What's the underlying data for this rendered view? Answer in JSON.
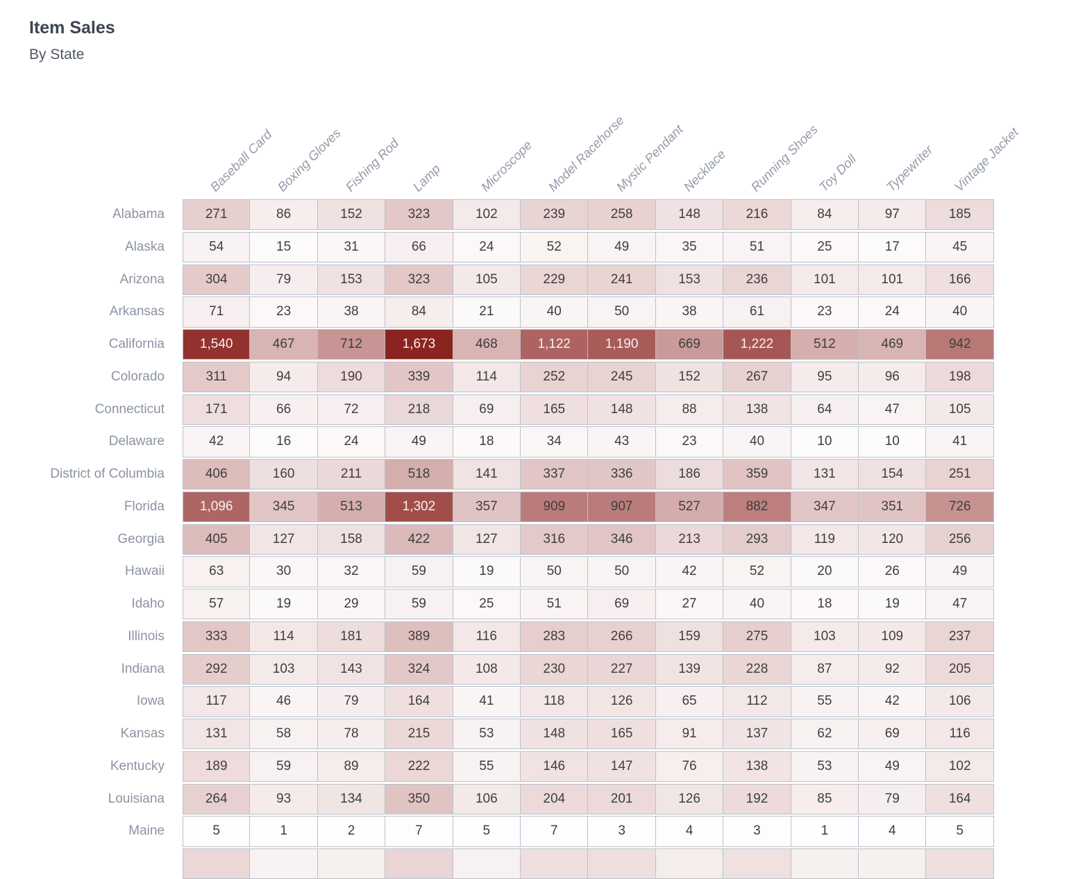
{
  "title": "Item Sales",
  "subtitle": "By State",
  "chart_data": {
    "type": "heatmap",
    "title": "Item Sales",
    "subtitle": "By State",
    "columns": [
      "Baseball Card",
      "Boxing Gloves",
      "Fishing Rod",
      "Lamp",
      "Microscope",
      "Model Racehorse",
      "Mystic Pendant",
      "Necklace",
      "Running Shoes",
      "Toy Doll",
      "Typewriter",
      "Vintage Jacket"
    ],
    "rows": [
      "Alabama",
      "Alaska",
      "Arizona",
      "Arkansas",
      "California",
      "Colorado",
      "Connecticut",
      "Delaware",
      "District of Columbia",
      "Florida",
      "Georgia",
      "Hawaii",
      "Idaho",
      "Illinois",
      "Indiana",
      "Iowa",
      "Kansas",
      "Kentucky",
      "Louisiana",
      "Maine"
    ],
    "values": [
      [
        271,
        86,
        152,
        323,
        102,
        239,
        258,
        148,
        216,
        84,
        97,
        185
      ],
      [
        54,
        15,
        31,
        66,
        24,
        52,
        49,
        35,
        51,
        25,
        17,
        45
      ],
      [
        304,
        79,
        153,
        323,
        105,
        229,
        241,
        153,
        236,
        101,
        101,
        166
      ],
      [
        71,
        23,
        38,
        84,
        21,
        40,
        50,
        38,
        61,
        23,
        24,
        40
      ],
      [
        1540,
        467,
        712,
        1673,
        468,
        1122,
        1190,
        669,
        1222,
        512,
        469,
        942
      ],
      [
        311,
        94,
        190,
        339,
        114,
        252,
        245,
        152,
        267,
        95,
        96,
        198
      ],
      [
        171,
        66,
        72,
        218,
        69,
        165,
        148,
        88,
        138,
        64,
        47,
        105
      ],
      [
        42,
        16,
        24,
        49,
        18,
        34,
        43,
        23,
        40,
        10,
        10,
        41
      ],
      [
        406,
        160,
        211,
        518,
        141,
        337,
        336,
        186,
        359,
        131,
        154,
        251
      ],
      [
        1096,
        345,
        513,
        1302,
        357,
        909,
        907,
        527,
        882,
        347,
        351,
        726
      ],
      [
        405,
        127,
        158,
        422,
        127,
        316,
        346,
        213,
        293,
        119,
        120,
        256
      ],
      [
        63,
        30,
        32,
        59,
        19,
        50,
        50,
        42,
        52,
        20,
        26,
        49
      ],
      [
        57,
        19,
        29,
        59,
        25,
        51,
        69,
        27,
        40,
        18,
        19,
        47
      ],
      [
        333,
        114,
        181,
        389,
        116,
        283,
        266,
        159,
        275,
        103,
        109,
        237
      ],
      [
        292,
        103,
        143,
        324,
        108,
        230,
        227,
        139,
        228,
        87,
        92,
        205
      ],
      [
        117,
        46,
        79,
        164,
        41,
        118,
        126,
        65,
        112,
        55,
        42,
        106
      ],
      [
        131,
        58,
        78,
        215,
        53,
        148,
        165,
        91,
        137,
        62,
        69,
        116
      ],
      [
        189,
        59,
        89,
        222,
        55,
        146,
        147,
        76,
        138,
        53,
        49,
        102
      ],
      [
        264,
        93,
        134,
        350,
        106,
        204,
        201,
        126,
        192,
        85,
        79,
        164
      ],
      [
        5,
        1,
        2,
        7,
        5,
        7,
        3,
        4,
        3,
        1,
        4,
        5
      ]
    ],
    "value_range": [
      0,
      1673
    ],
    "number_format": "thousands-comma",
    "color_scale": {
      "low": "#fffefe",
      "high": "#8b2421",
      "gamma": 0.85,
      "domain_max": 1673
    },
    "value_text_dark": "#3e3e3e",
    "value_text_light": "#f7f1f0",
    "label_color": "#8b93a2",
    "header_color": "#939aa9",
    "grid_line_color": "#bac0cc",
    "partial_next_row_colors": [
      "#ead7d6",
      "#f8f3f2",
      "#f6f0ef",
      "#e9d5d4",
      "#f7f2f1",
      "#eedfde",
      "#eedfde",
      "#f4edec",
      "#efe1e0",
      "#f6f0ef",
      "#f6f0ef",
      "#eedfde"
    ]
  }
}
